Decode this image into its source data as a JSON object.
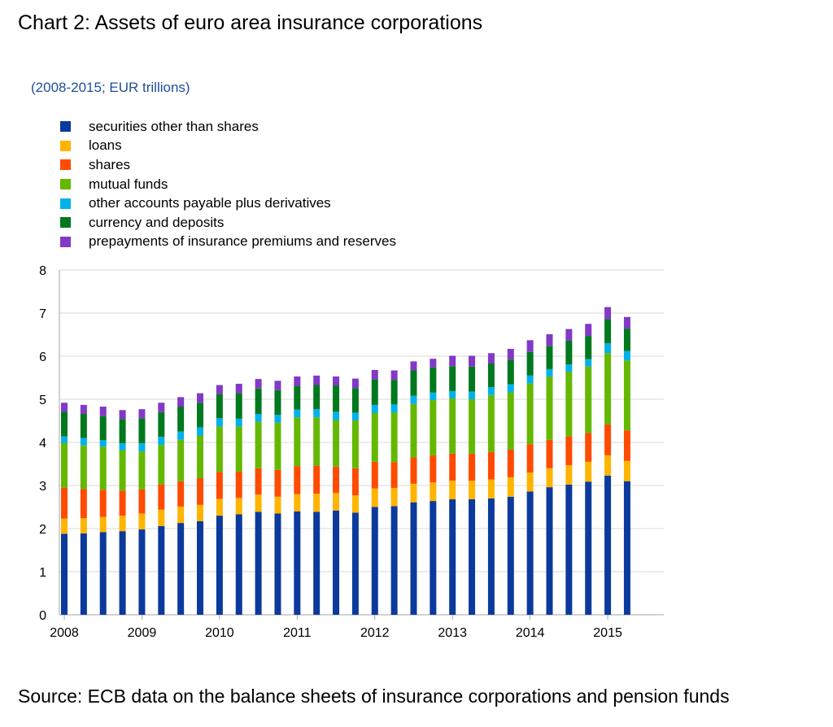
{
  "title": "Chart 2: Assets of euro area insurance corporations",
  "subtitle": "(2008-2015; EUR trillions)",
  "source": "Source: ECB data on the balance sheets of insurance corporations and pension funds",
  "chart_data": {
    "type": "bar",
    "stacked": true,
    "title": "Chart 2: Assets of euro area insurance corporations",
    "subtitle": "(2008-2015; EUR trillions)",
    "xlabel": "",
    "ylabel": "",
    "ylim": [
      0,
      8
    ],
    "yticks": [
      "0",
      "1",
      "2",
      "3",
      "4",
      "5",
      "6",
      "7",
      "8"
    ],
    "xticks": [
      "2008",
      "2009",
      "2010",
      "2011",
      "2012",
      "2013",
      "2014",
      "2015"
    ],
    "grid": true,
    "legend_position": "top-left",
    "categories": [
      "2008Q1",
      "2008Q2",
      "2008Q3",
      "2008Q4",
      "2009Q1",
      "2009Q2",
      "2009Q3",
      "2009Q4",
      "2010Q1",
      "2010Q2",
      "2010Q3",
      "2010Q4",
      "2011Q1",
      "2011Q2",
      "2011Q3",
      "2011Q4",
      "2012Q1",
      "2012Q2",
      "2012Q3",
      "2012Q4",
      "2013Q1",
      "2013Q2",
      "2013Q3",
      "2013Q4",
      "2014Q1",
      "2014Q2",
      "2014Q3",
      "2014Q4",
      "2015Q1",
      "2015Q2"
    ],
    "series": [
      {
        "name": "securities other than shares",
        "color": "#0b3a9c",
        "values": [
          1.88,
          1.89,
          1.92,
          1.94,
          1.98,
          2.06,
          2.13,
          2.17,
          2.3,
          2.33,
          2.39,
          2.35,
          2.4,
          2.39,
          2.42,
          2.37,
          2.5,
          2.52,
          2.61,
          2.64,
          2.68,
          2.68,
          2.7,
          2.74,
          2.86,
          2.96,
          3.02,
          3.09,
          3.23,
          3.1
        ]
      },
      {
        "name": "loans",
        "color": "#ffb400",
        "values": [
          0.35,
          0.35,
          0.35,
          0.36,
          0.37,
          0.38,
          0.38,
          0.38,
          0.39,
          0.38,
          0.4,
          0.39,
          0.4,
          0.42,
          0.41,
          0.4,
          0.43,
          0.42,
          0.43,
          0.43,
          0.43,
          0.43,
          0.44,
          0.45,
          0.44,
          0.44,
          0.45,
          0.46,
          0.47,
          0.47
        ]
      },
      {
        "name": "shares",
        "color": "#ff4b00",
        "values": [
          0.72,
          0.68,
          0.63,
          0.58,
          0.56,
          0.58,
          0.59,
          0.62,
          0.62,
          0.61,
          0.61,
          0.62,
          0.65,
          0.65,
          0.61,
          0.63,
          0.62,
          0.6,
          0.61,
          0.63,
          0.63,
          0.63,
          0.64,
          0.64,
          0.66,
          0.66,
          0.67,
          0.67,
          0.72,
          0.71
        ]
      },
      {
        "name": "mutual funds",
        "color": "#65b800",
        "values": [
          1.04,
          1.01,
          1.0,
          0.94,
          0.88,
          0.92,
          0.96,
          0.99,
          1.06,
          1.05,
          1.08,
          1.1,
          1.13,
          1.12,
          1.08,
          1.11,
          1.13,
          1.15,
          1.24,
          1.28,
          1.28,
          1.26,
          1.32,
          1.33,
          1.41,
          1.47,
          1.5,
          1.54,
          1.65,
          1.62
        ]
      },
      {
        "name": "other accounts payable plus derivatives",
        "color": "#00b1ea",
        "values": [
          0.15,
          0.17,
          0.15,
          0.16,
          0.19,
          0.19,
          0.19,
          0.19,
          0.19,
          0.18,
          0.18,
          0.18,
          0.18,
          0.19,
          0.19,
          0.18,
          0.19,
          0.19,
          0.19,
          0.18,
          0.17,
          0.18,
          0.18,
          0.19,
          0.18,
          0.17,
          0.17,
          0.17,
          0.23,
          0.22
        ]
      },
      {
        "name": "currency and deposits",
        "color": "#00781e",
        "values": [
          0.57,
          0.56,
          0.56,
          0.56,
          0.58,
          0.57,
          0.58,
          0.57,
          0.56,
          0.59,
          0.59,
          0.57,
          0.55,
          0.56,
          0.61,
          0.57,
          0.59,
          0.57,
          0.59,
          0.58,
          0.58,
          0.58,
          0.55,
          0.57,
          0.55,
          0.54,
          0.55,
          0.54,
          0.56,
          0.52
        ]
      },
      {
        "name": "prepayments of insurance premiums and reserves",
        "color": "#8139c6",
        "values": [
          0.21,
          0.21,
          0.22,
          0.21,
          0.21,
          0.22,
          0.22,
          0.22,
          0.21,
          0.22,
          0.22,
          0.22,
          0.22,
          0.22,
          0.21,
          0.22,
          0.22,
          0.22,
          0.21,
          0.2,
          0.24,
          0.25,
          0.24,
          0.25,
          0.27,
          0.27,
          0.27,
          0.28,
          0.28,
          0.27
        ]
      }
    ]
  }
}
